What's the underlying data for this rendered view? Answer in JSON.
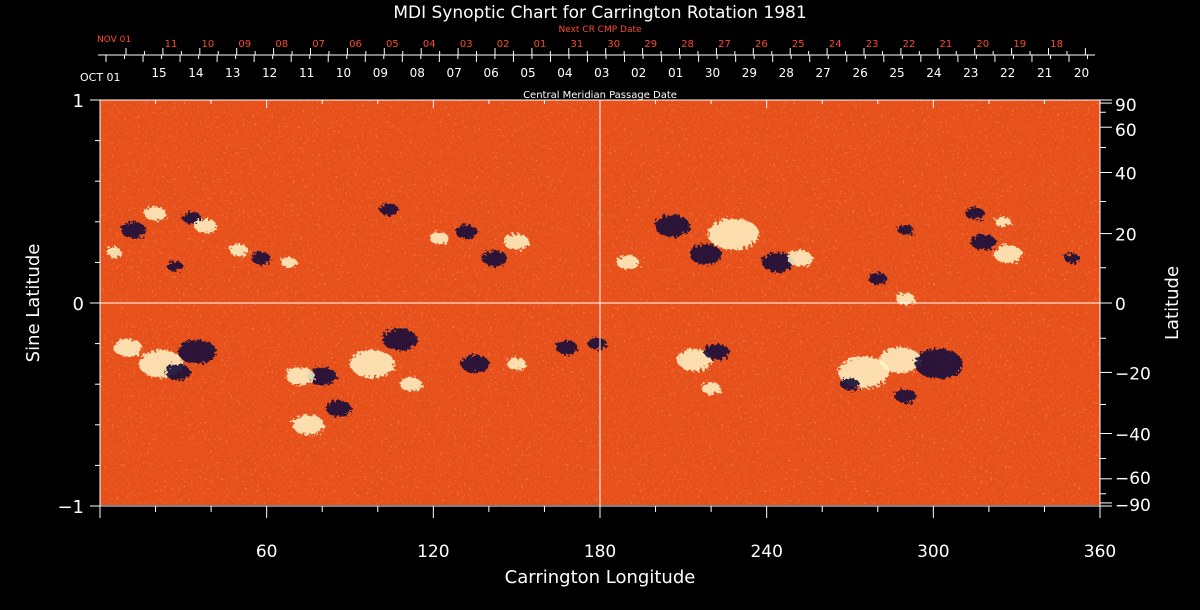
{
  "chart_data": {
    "type": "heatmap",
    "title": "MDI Synoptic Chart for Carrington Rotation 1981",
    "xlabel": "Carrington Longitude",
    "ylabel_left": "Sine Latitude",
    "ylabel_right": "Latitude",
    "xlim": [
      0,
      360
    ],
    "ylim": [
      -1,
      1
    ],
    "x_ticks": [
      "60",
      "120",
      "180",
      "240",
      "300",
      "360"
    ],
    "y_ticks_left": [
      "1",
      "0",
      "−1"
    ],
    "y_ticks_right": [
      "90",
      "60",
      "40",
      "20",
      "0",
      "−20",
      "−40",
      "−60",
      "−90"
    ],
    "y_ticks_right_values": [
      90,
      60,
      40,
      20,
      0,
      -20,
      -40,
      -60,
      -90
    ],
    "cmp_axis_label": "Central Meridian Passage Date",
    "cmp_start_label": "OCT 01",
    "cmp_dates": [
      "15",
      "14",
      "13",
      "12",
      "11",
      "10",
      "09",
      "08",
      "07",
      "06",
      "05",
      "04",
      "03",
      "02",
      "01",
      "30",
      "29",
      "28",
      "27",
      "26",
      "25",
      "24",
      "23",
      "22",
      "21",
      "20"
    ],
    "next_cmp_label": "Next CR CMP Date",
    "next_start_label": "NOV 01",
    "next_dates": [
      "11",
      "10",
      "09",
      "08",
      "07",
      "06",
      "05",
      "04",
      "03",
      "02",
      "01",
      "31",
      "30",
      "29",
      "28",
      "27",
      "26",
      "25",
      "24",
      "23",
      "22",
      "21",
      "20",
      "19",
      "18"
    ],
    "colors": {
      "background_field": "#e8501a",
      "positive_polarity": "#fff6c8",
      "negative_polarity": "#14103a",
      "axis": "#ffffff",
      "next_axis": "#ff4a2a"
    },
    "active_regions": [
      {
        "lon": 12,
        "sinlat": 0.36,
        "r": 8,
        "polarity": "negative"
      },
      {
        "lon": 20,
        "sinlat": 0.44,
        "r": 7,
        "polarity": "positive"
      },
      {
        "lon": 5,
        "sinlat": 0.25,
        "r": 5,
        "polarity": "positive"
      },
      {
        "lon": 27,
        "sinlat": 0.18,
        "r": 5,
        "polarity": "negative"
      },
      {
        "lon": 33,
        "sinlat": 0.42,
        "r": 6,
        "polarity": "negative"
      },
      {
        "lon": 38,
        "sinlat": 0.38,
        "r": 7,
        "polarity": "positive"
      },
      {
        "lon": 22,
        "sinlat": -0.3,
        "r": 14,
        "polarity": "positive"
      },
      {
        "lon": 10,
        "sinlat": -0.22,
        "r": 9,
        "polarity": "positive"
      },
      {
        "lon": 35,
        "sinlat": -0.24,
        "r": 12,
        "polarity": "negative"
      },
      {
        "lon": 28,
        "sinlat": -0.34,
        "r": 8,
        "polarity": "negative"
      },
      {
        "lon": 58,
        "sinlat": 0.22,
        "r": 6,
        "polarity": "negative"
      },
      {
        "lon": 50,
        "sinlat": 0.26,
        "r": 6,
        "polarity": "positive"
      },
      {
        "lon": 68,
        "sinlat": 0.2,
        "r": 5,
        "polarity": "positive"
      },
      {
        "lon": 80,
        "sinlat": -0.36,
        "r": 9,
        "polarity": "negative"
      },
      {
        "lon": 72,
        "sinlat": -0.36,
        "r": 9,
        "polarity": "positive"
      },
      {
        "lon": 86,
        "sinlat": -0.52,
        "r": 8,
        "polarity": "negative"
      },
      {
        "lon": 75,
        "sinlat": -0.6,
        "r": 10,
        "polarity": "positive"
      },
      {
        "lon": 98,
        "sinlat": -0.3,
        "r": 14,
        "polarity": "positive"
      },
      {
        "lon": 108,
        "sinlat": -0.18,
        "r": 11,
        "polarity": "negative"
      },
      {
        "lon": 112,
        "sinlat": -0.4,
        "r": 7,
        "polarity": "positive"
      },
      {
        "lon": 104,
        "sinlat": 0.46,
        "r": 6,
        "polarity": "negative"
      },
      {
        "lon": 122,
        "sinlat": 0.32,
        "r": 6,
        "polarity": "positive"
      },
      {
        "lon": 132,
        "sinlat": 0.35,
        "r": 7,
        "polarity": "negative"
      },
      {
        "lon": 142,
        "sinlat": 0.22,
        "r": 8,
        "polarity": "negative"
      },
      {
        "lon": 150,
        "sinlat": 0.3,
        "r": 8,
        "polarity": "positive"
      },
      {
        "lon": 135,
        "sinlat": -0.3,
        "r": 9,
        "polarity": "negative"
      },
      {
        "lon": 150,
        "sinlat": -0.3,
        "r": 6,
        "polarity": "positive"
      },
      {
        "lon": 168,
        "sinlat": -0.22,
        "r": 7,
        "polarity": "negative"
      },
      {
        "lon": 179,
        "sinlat": -0.2,
        "r": 6,
        "polarity": "negative"
      },
      {
        "lon": 190,
        "sinlat": 0.2,
        "r": 7,
        "polarity": "positive"
      },
      {
        "lon": 206,
        "sinlat": 0.38,
        "r": 11,
        "polarity": "negative"
      },
      {
        "lon": 218,
        "sinlat": 0.24,
        "r": 10,
        "polarity": "negative"
      },
      {
        "lon": 228,
        "sinlat": 0.34,
        "r": 16,
        "polarity": "positive"
      },
      {
        "lon": 244,
        "sinlat": 0.2,
        "r": 10,
        "polarity": "negative"
      },
      {
        "lon": 252,
        "sinlat": 0.22,
        "r": 8,
        "polarity": "positive"
      },
      {
        "lon": 214,
        "sinlat": -0.28,
        "r": 11,
        "polarity": "positive"
      },
      {
        "lon": 222,
        "sinlat": -0.24,
        "r": 8,
        "polarity": "negative"
      },
      {
        "lon": 220,
        "sinlat": -0.42,
        "r": 6,
        "polarity": "positive"
      },
      {
        "lon": 275,
        "sinlat": -0.34,
        "r": 16,
        "polarity": "positive"
      },
      {
        "lon": 288,
        "sinlat": -0.28,
        "r": 13,
        "polarity": "positive"
      },
      {
        "lon": 302,
        "sinlat": -0.3,
        "r": 15,
        "polarity": "negative"
      },
      {
        "lon": 270,
        "sinlat": -0.4,
        "r": 6,
        "polarity": "negative"
      },
      {
        "lon": 290,
        "sinlat": -0.46,
        "r": 7,
        "polarity": "negative"
      },
      {
        "lon": 280,
        "sinlat": 0.12,
        "r": 6,
        "polarity": "negative"
      },
      {
        "lon": 290,
        "sinlat": 0.02,
        "r": 6,
        "polarity": "positive"
      },
      {
        "lon": 318,
        "sinlat": 0.3,
        "r": 8,
        "polarity": "negative"
      },
      {
        "lon": 327,
        "sinlat": 0.24,
        "r": 9,
        "polarity": "positive"
      },
      {
        "lon": 315,
        "sinlat": 0.44,
        "r": 6,
        "polarity": "negative"
      },
      {
        "lon": 325,
        "sinlat": 0.4,
        "r": 5,
        "polarity": "positive"
      },
      {
        "lon": 350,
        "sinlat": 0.22,
        "r": 5,
        "polarity": "negative"
      },
      {
        "lon": 290,
        "sinlat": 0.36,
        "r": 5,
        "polarity": "negative"
      }
    ]
  }
}
